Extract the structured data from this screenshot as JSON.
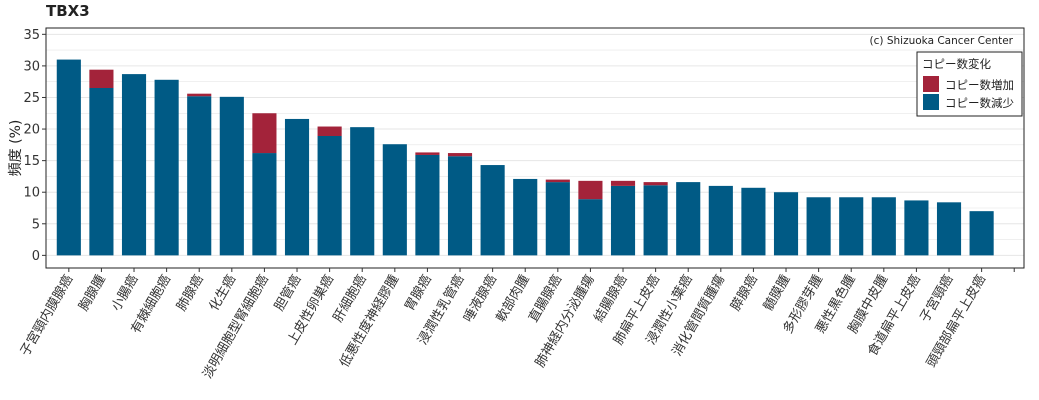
{
  "title": "TBX3",
  "credit": "(c) Shizuoka Cancer Center",
  "colors": {
    "gain": "#a3233a",
    "loss": "#005a85",
    "grid": "#e6e6e6",
    "frame": "#222222"
  },
  "chart_data": {
    "type": "bar",
    "stacked": true,
    "title": "TBX3",
    "xlabel": "",
    "ylabel": "頻度 (%)",
    "ylim": [
      -2,
      36
    ],
    "yticks": [
      0,
      5,
      10,
      15,
      20,
      25,
      30,
      35
    ],
    "grid": true,
    "legend": {
      "title": "コピー数変化",
      "position": "top-right"
    },
    "categories": [
      "子宮頸内膜腺癌",
      "胸腺腫",
      "小腸癌",
      "有棘細胞癌",
      "肺腺癌",
      "化生癌",
      "淡明細胞型腎細胞癌",
      "胆管癌",
      "上皮性卵巣癌",
      "肝細胞癌",
      "低悪性度神経膠腫",
      "胃腺癌",
      "浸潤性乳管癌",
      "唾液腺癌",
      "軟部肉腫",
      "直腸腺癌",
      "肺神経内分泌腫瘍",
      "結腸腺癌",
      "肺扁平上皮癌",
      "浸潤性小葉癌",
      "消化管間質腫瘍",
      "膵腺癌",
      "髄膜腫",
      "多形膠芽腫",
      "悪性黒色腫",
      "胸膜中皮腫",
      "食道扁平上皮癌",
      "子宮頸癌",
      "頭頸部扁平上皮癌"
    ],
    "series": [
      {
        "name": "コピー数減少",
        "values": [
          31.0,
          26.5,
          28.7,
          27.8,
          25.2,
          25.1,
          16.2,
          21.6,
          18.9,
          20.3,
          17.6,
          15.9,
          15.7,
          14.3,
          12.1,
          11.6,
          8.9,
          11.0,
          11.1,
          11.6,
          11.0,
          10.7,
          10.0,
          9.2,
          9.2,
          9.2,
          8.7,
          8.4,
          7.0
        ]
      },
      {
        "name": "コピー数増加",
        "values": [
          0,
          2.9,
          0,
          0,
          0.4,
          0,
          6.3,
          0,
          1.5,
          0,
          0,
          0.4,
          0.5,
          0,
          0,
          0.4,
          2.9,
          0.8,
          0.5,
          0,
          0,
          0,
          0,
          0,
          0,
          0,
          0,
          0,
          0
        ]
      }
    ]
  }
}
